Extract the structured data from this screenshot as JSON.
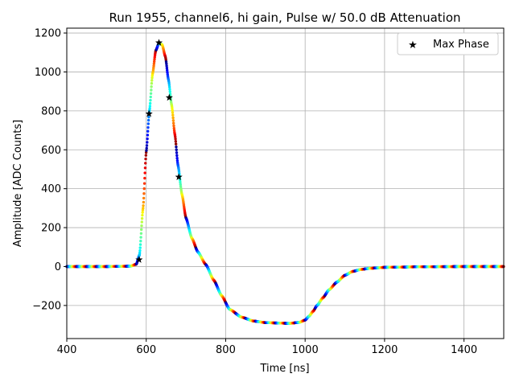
{
  "chart_data": {
    "type": "scatter",
    "title": "Run 1955, channel6, hi gain, Pulse w/ 50.0 dB Attenuation",
    "xlabel": "Time [ns]",
    "ylabel": "Amplitude [ADC Counts]",
    "xlim": [
      400,
      1500
    ],
    "ylim": [
      -370,
      1225
    ],
    "xticks": [
      400,
      600,
      800,
      1000,
      1200,
      1400
    ],
    "yticks": [
      -200,
      0,
      200,
      400,
      600,
      800,
      1000,
      1200
    ],
    "xtick_labels": [
      "400",
      "600",
      "800",
      "1000",
      "1200",
      "1400"
    ],
    "ytick_labels": [
      "−200",
      "0",
      "200",
      "400",
      "600",
      "800",
      "1000",
      "1200"
    ],
    "grid": true,
    "legend_position": "top-right",
    "colormap": "jet",
    "series": [
      {
        "name": "",
        "marker": "dots",
        "x": [
          400,
          500,
          560,
          575,
          583,
          592,
          600,
          608,
          616,
          624,
          632,
          640,
          648,
          656,
          664,
          672,
          680,
          690,
          700,
          715,
          730,
          750,
          770,
          790,
          810,
          840,
          870,
          900,
          930,
          960,
          985,
          1000,
          1010,
          1020,
          1030,
          1045,
          1060,
          1080,
          1100,
          1120,
          1140,
          1160,
          1180,
          1200,
          1300,
          1400,
          1500
        ],
        "y": [
          0,
          0,
          2,
          12,
          60,
          300,
          590,
          800,
          990,
          1110,
          1148,
          1140,
          1080,
          960,
          830,
          680,
          520,
          370,
          250,
          145,
          75,
          10,
          -70,
          -150,
          -220,
          -260,
          -280,
          -288,
          -290,
          -292,
          -287,
          -275,
          -255,
          -230,
          -200,
          -160,
          -120,
          -80,
          -45,
          -25,
          -15,
          -10,
          -7,
          -4,
          -1,
          0,
          0
        ]
      },
      {
        "name": "Max Phase",
        "marker": "star",
        "color": "#000000",
        "x": [
          582,
          607,
          632,
          658,
          682
        ],
        "y": [
          35,
          785,
          1150,
          868,
          460
        ]
      }
    ]
  }
}
